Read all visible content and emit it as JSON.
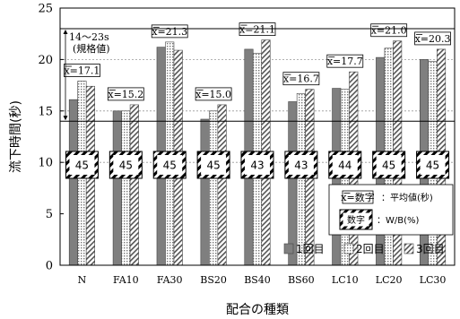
{
  "chart_data": {
    "type": "bar",
    "categories": [
      "N",
      "FA10",
      "FA30",
      "BS20",
      "BS40",
      "BS60",
      "LC10",
      "LC20",
      "LC30"
    ],
    "series": [
      {
        "name": "1回目",
        "values": [
          16.1,
          15.0,
          21.2,
          14.2,
          21.0,
          15.9,
          17.2,
          20.2,
          20.0
        ]
      },
      {
        "name": "2回目",
        "values": [
          17.9,
          15.0,
          21.7,
          15.0,
          20.6,
          16.7,
          17.1,
          21.1,
          19.8
        ]
      },
      {
        "name": "3回目",
        "values": [
          17.4,
          15.6,
          20.9,
          15.6,
          21.9,
          17.1,
          18.8,
          21.8,
          21.0
        ]
      }
    ],
    "mean_labels": [
      "x=17.1",
      "x=15.2",
      "x=21.3",
      "x=15.0",
      "x=21.1",
      "x=16.7",
      "x=17.7",
      "x=21.0",
      "x=20.3"
    ],
    "wb_labels": [
      "45",
      "45",
      "45",
      "45",
      "43",
      "43",
      "44",
      "45",
      "45"
    ],
    "ylabel": "流下時間(秒)",
    "xlabel": "配合の種類",
    "ylim": [
      0,
      25
    ],
    "yticks": [
      0,
      5,
      10,
      15,
      20,
      25
    ],
    "ytick_labels": [
      "0",
      "5",
      "10",
      "15",
      "20",
      "25"
    ],
    "spec_range": {
      "low": 14,
      "high": 23,
      "text": "14～23s",
      "text2": "(規格値)"
    },
    "gridlines": [
      10,
      15,
      20
    ],
    "legend": {
      "mean_key": "x=数字",
      "mean_desc": "：平均値(秒)",
      "wb_key": "数字",
      "wb_desc": "：W/B(%)",
      "placement": "lower-right"
    }
  }
}
